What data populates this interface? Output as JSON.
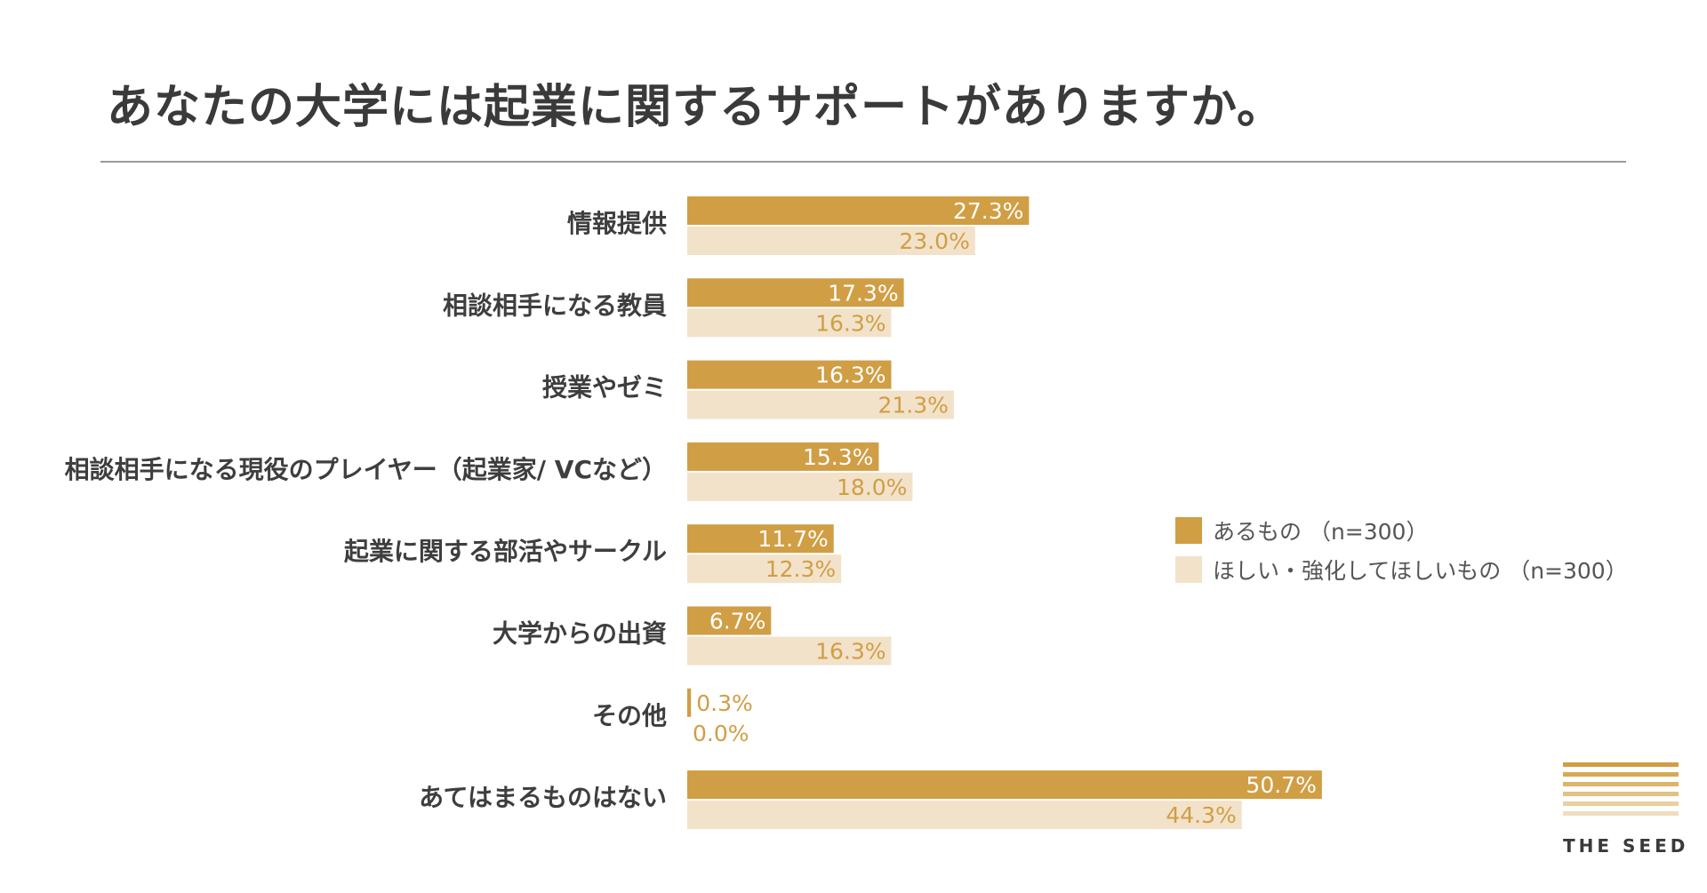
{
  "title": "あなたの大学には起業に関するサポートがありますか。",
  "colors": {
    "has": "#d09e44",
    "want": "#f2e2ca",
    "want_label": "#d09e44",
    "text": "#3e3e3e"
  },
  "legend": [
    {
      "label": "あるもの （n=300）",
      "series": "has"
    },
    {
      "label": "ほしい・強化してほしいもの （n=300）",
      "series": "want"
    }
  ],
  "brand": {
    "name": "THE SEED"
  },
  "chart_data": {
    "type": "bar",
    "orientation": "horizontal",
    "title": "あなたの大学には起業に関するサポートがありますか。",
    "categories": [
      "情報提供",
      "相談相手になる教員",
      "授業やゼミ",
      "相談相手になる現役のプレイヤー（起業家/ VCなど）",
      "起業に関する部活やサークル",
      "大学からの出資",
      "その他",
      "あてはまるものはない"
    ],
    "series": [
      {
        "name": "あるもの （n=300）",
        "key": "has",
        "values": [
          27.3,
          17.3,
          16.3,
          15.3,
          11.7,
          6.7,
          0.3,
          50.7
        ],
        "labels": [
          "27.3%",
          "17.3%",
          "16.3%",
          "15.3%",
          "11.7%",
          "6.7%",
          "0.3%",
          "50.7%"
        ]
      },
      {
        "name": "ほしい・強化してほしいもの （n=300）",
        "key": "want",
        "values": [
          23.0,
          16.3,
          21.3,
          18.0,
          12.3,
          16.3,
          0.0,
          44.3
        ],
        "labels": [
          "23.0%",
          "16.3%",
          "21.3%",
          "18.0%",
          "12.3%",
          "16.3%",
          "0.0%",
          "44.3%"
        ]
      }
    ],
    "unit": "%",
    "xlim": [
      0,
      100
    ],
    "grid": false,
    "legend_position": "right"
  }
}
